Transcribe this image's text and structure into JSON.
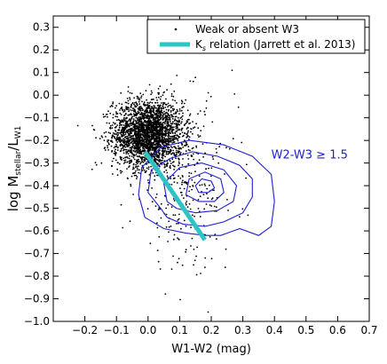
{
  "chart_data": {
    "type": "scatter",
    "xlabel": "W1-W2 (mag)",
    "ylabel": {
      "main": "log M",
      "sub1": "stellar",
      "mid": "/L",
      "sub2": "W1"
    },
    "xlim": [
      -0.3,
      0.7
    ],
    "ylim": [
      -1.0,
      0.35
    ],
    "xticks": [
      "−0.2",
      "−0.1",
      "0.0",
      "0.1",
      "0.2",
      "0.3",
      "0.4",
      "0.5",
      "0.6",
      "0.7"
    ],
    "yticks": [
      "−1.0",
      "−0.9",
      "−0.8",
      "−0.7",
      "−0.6",
      "−0.5",
      "−0.4",
      "−0.3",
      "−0.2",
      "−0.1",
      "0.0",
      "0.1",
      "0.2",
      "0.3"
    ],
    "grid": false,
    "legend_position": "top-right",
    "legend": [
      {
        "label": "Weak or absent W3",
        "marker": "dot",
        "color": "#000000"
      },
      {
        "label_main": "K",
        "label_sub": "s",
        "label_rest": " relation (Jarrett et al. 2013)",
        "marker": "line",
        "color": "#2ec4c6"
      }
    ],
    "annotation": {
      "text": "W2-W3 ≥ 1.5",
      "x": 0.39,
      "y": -0.28,
      "color": "#1f1fd0"
    },
    "scatter_series": {
      "name": "Weak or absent W3",
      "color": "#000000",
      "cluster": {
        "x_center": 0.0,
        "y_center": -0.17,
        "x_sd": 0.055,
        "y_sd": 0.075,
        "n": 2600
      },
      "tail": {
        "x_center": 0.12,
        "y_center": -0.4,
        "x_sd": 0.08,
        "y_sd": 0.18,
        "n": 300
      }
    },
    "ks_relation": {
      "x": [
        -0.01,
        0.18
      ],
      "y": [
        -0.25,
        -0.64
      ],
      "color": "#2ec4c6"
    },
    "contours": {
      "color": "#1f1fd0",
      "levels": [
        [
          [
            0.04,
            -0.5
          ],
          [
            0.0,
            -0.43
          ],
          [
            0.01,
            -0.33
          ],
          [
            0.07,
            -0.28
          ],
          [
            0.14,
            -0.25
          ],
          [
            0.22,
            -0.27
          ],
          [
            0.29,
            -0.31
          ],
          [
            0.33,
            -0.37
          ],
          [
            0.33,
            -0.45
          ],
          [
            0.3,
            -0.52
          ],
          [
            0.24,
            -0.56
          ],
          [
            0.18,
            -0.58
          ],
          [
            0.11,
            -0.57
          ],
          [
            0.06,
            -0.54
          ]
        ],
        [
          [
            0.06,
            -0.47
          ],
          [
            0.05,
            -0.39
          ],
          [
            0.1,
            -0.32
          ],
          [
            0.17,
            -0.3
          ],
          [
            0.24,
            -0.33
          ],
          [
            0.28,
            -0.4
          ],
          [
            0.27,
            -0.47
          ],
          [
            0.22,
            -0.51
          ],
          [
            0.15,
            -0.52
          ],
          [
            0.09,
            -0.5
          ]
        ],
        [
          [
            0.12,
            -0.44
          ],
          [
            0.13,
            -0.37
          ],
          [
            0.18,
            -0.34
          ],
          [
            0.23,
            -0.37
          ],
          [
            0.24,
            -0.43
          ],
          [
            0.21,
            -0.47
          ],
          [
            0.16,
            -0.47
          ]
        ],
        [
          [
            0.15,
            -0.4
          ],
          [
            0.17,
            -0.37
          ],
          [
            0.2,
            -0.38
          ],
          [
            0.21,
            -0.41
          ],
          [
            0.19,
            -0.43
          ],
          [
            0.16,
            -0.43
          ]
        ],
        [
          [
            -0.01,
            -0.54
          ],
          [
            -0.03,
            -0.44
          ],
          [
            -0.02,
            -0.32
          ],
          [
            0.04,
            -0.23
          ],
          [
            0.13,
            -0.2
          ],
          [
            0.24,
            -0.22
          ],
          [
            0.33,
            -0.27
          ],
          [
            0.39,
            -0.35
          ],
          [
            0.4,
            -0.47
          ],
          [
            0.39,
            -0.58
          ],
          [
            0.35,
            -0.62
          ],
          [
            0.29,
            -0.59
          ],
          [
            0.23,
            -0.62
          ],
          [
            0.18,
            -0.62
          ],
          [
            0.12,
            -0.61
          ],
          [
            0.05,
            -0.59
          ]
        ]
      ]
    }
  }
}
